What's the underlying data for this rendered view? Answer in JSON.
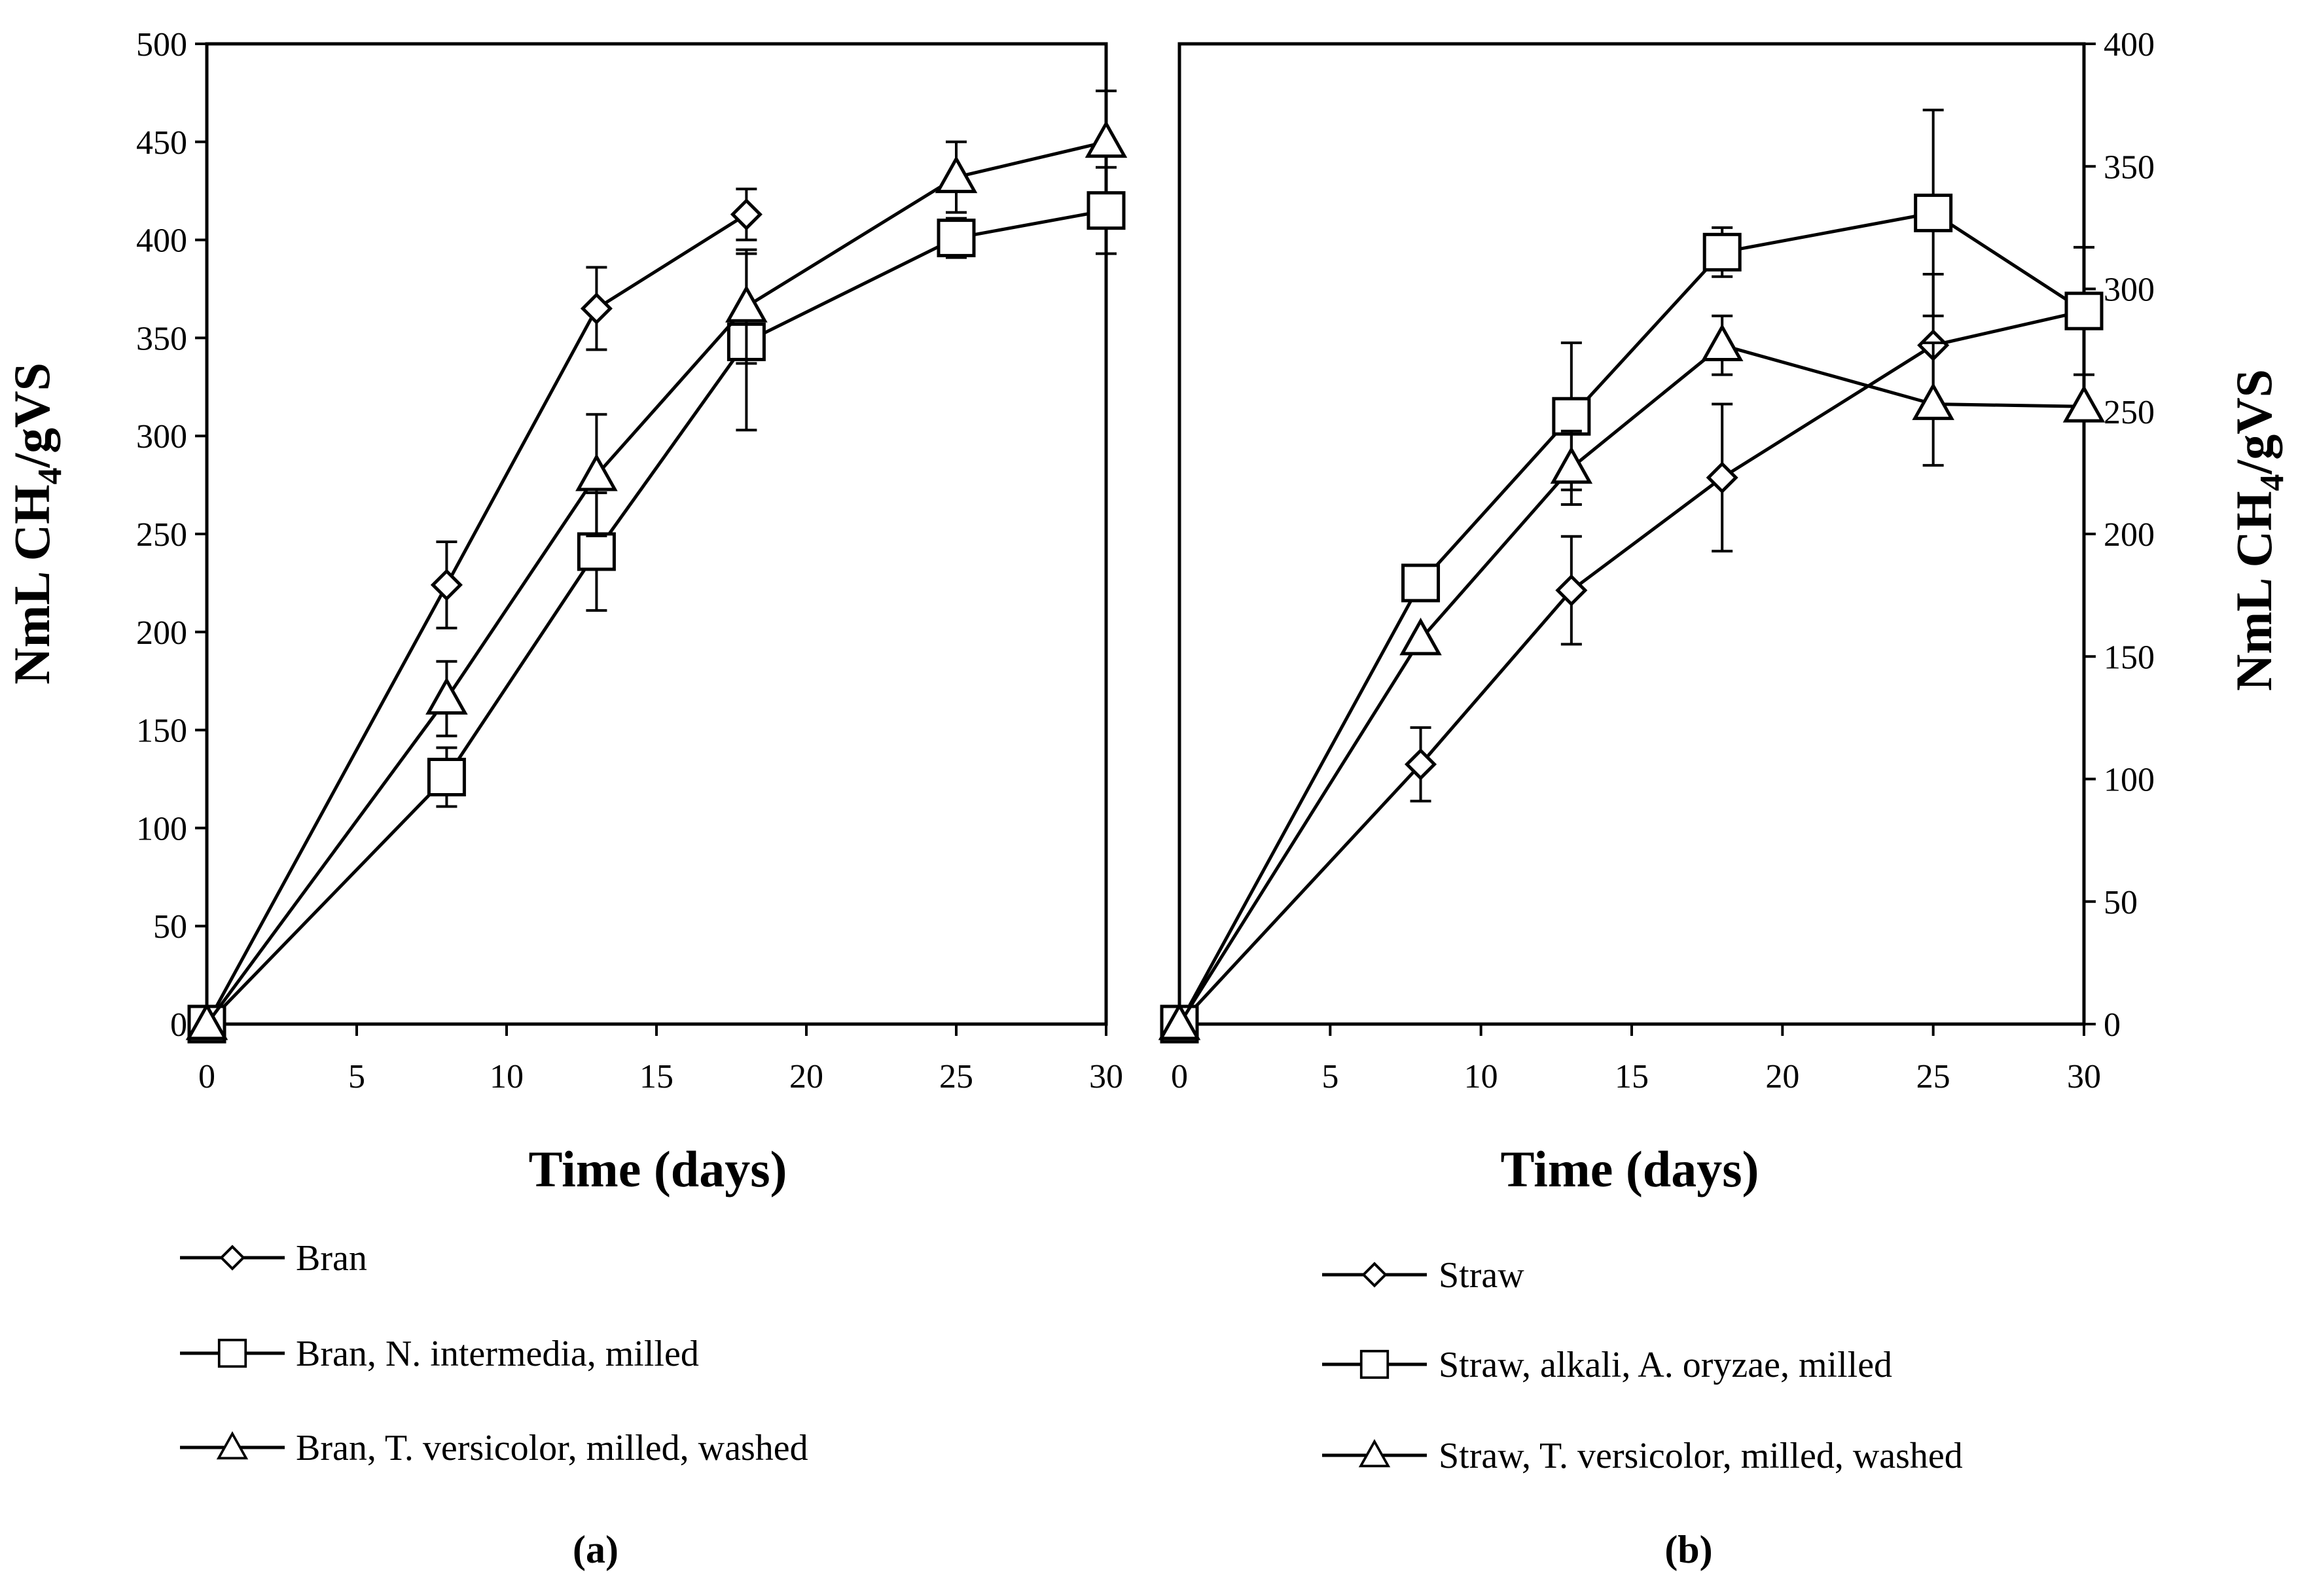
{
  "chart_data": [
    {
      "type": "line",
      "panel_label": "(a)",
      "xlabel": "Time (days)",
      "ylabel": "NmL CH",
      "ylabel_sub": "4",
      "ylabel_tail": "/gVS",
      "xlim": [
        0,
        30
      ],
      "ylim": [
        0,
        500
      ],
      "xticks": [
        "0",
        "5",
        "10",
        "15",
        "20",
        "25",
        "30"
      ],
      "yticks": [
        "0",
        "50",
        "100",
        "150",
        "200",
        "250",
        "300",
        "350",
        "400",
        "450",
        "500"
      ],
      "series": [
        {
          "name": "Bran",
          "marker": "diamond",
          "x": [
            0,
            8,
            13,
            18
          ],
          "y": [
            0,
            224,
            365,
            413
          ],
          "err": [
            0,
            22,
            21,
            13
          ]
        },
        {
          "name": "Bran, N. intermedia, milled",
          "marker": "square",
          "x": [
            0,
            8,
            13,
            18,
            25,
            30
          ],
          "y": [
            0,
            126,
            241,
            348,
            401,
            415
          ],
          "err": [
            0,
            15,
            30,
            45,
            10,
            22
          ]
        },
        {
          "name": "Bran, T. versicolor, milled, washed",
          "marker": "triangle",
          "x": [
            0,
            8,
            13,
            18,
            25,
            30
          ],
          "y": [
            0,
            166,
            280,
            366,
            432,
            450
          ],
          "err": [
            0,
            19,
            31,
            29,
            18,
            26
          ]
        }
      ]
    },
    {
      "type": "line",
      "panel_label": "(b)",
      "xlabel": "Time (days)",
      "ylabel": "NmL CH",
      "ylabel_sub": "4",
      "ylabel_tail": "/gVS",
      "xlim": [
        0,
        30
      ],
      "ylim": [
        0,
        400
      ],
      "xticks": [
        "0",
        "5",
        "10",
        "15",
        "20",
        "25",
        "30"
      ],
      "yticks": [
        "0",
        "50",
        "100",
        "150",
        "200",
        "250",
        "300",
        "350",
        "400"
      ],
      "series": [
        {
          "name": "Straw",
          "marker": "diamond",
          "x": [
            0,
            8,
            13,
            18,
            25,
            30
          ],
          "y": [
            0,
            106,
            177,
            223,
            277,
            291
          ],
          "err": [
            0,
            15,
            22,
            30,
            29,
            0
          ]
        },
        {
          "name": "Straw, alkali, A. oryzae, milled",
          "marker": "square",
          "x": [
            0,
            8,
            13,
            18,
            25,
            30
          ],
          "y": [
            0,
            180,
            248,
            315,
            331,
            291
          ],
          "err": [
            0,
            0,
            30,
            10,
            42,
            26
          ]
        },
        {
          "name": "Straw, T. versicolor, milled, washed",
          "marker": "triangle",
          "x": [
            0,
            8,
            13,
            18,
            25,
            30
          ],
          "y": [
            0,
            157,
            227,
            277,
            253,
            252
          ],
          "err": [
            0,
            0,
            15,
            12,
            25,
            0
          ]
        }
      ]
    }
  ]
}
